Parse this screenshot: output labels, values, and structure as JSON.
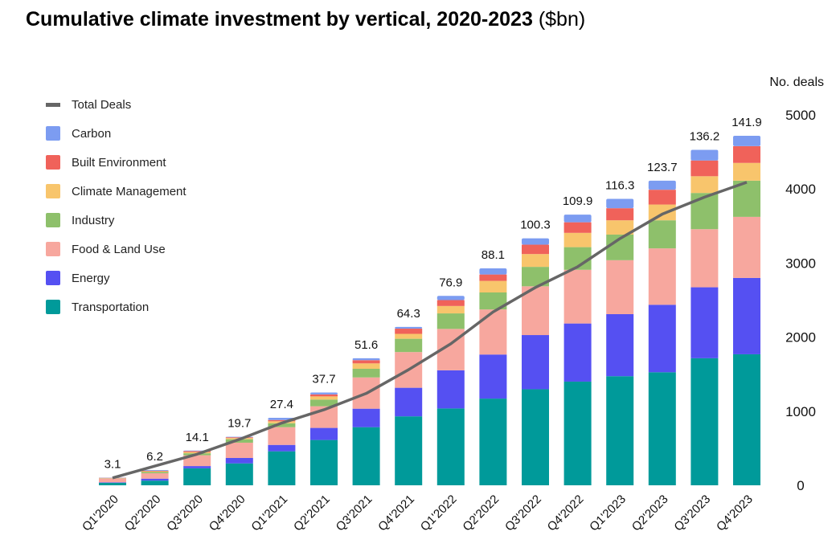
{
  "chart_data": {
    "type": "bar",
    "stacked": true,
    "title": "Cumulative climate investment by vertical, 2020-2023",
    "title_unit": "($bn)",
    "right_axis_label": "No. deals",
    "right_axis_ticks": [
      0,
      1000,
      2000,
      3000,
      4000,
      5000
    ],
    "right_axis_range": [
      0,
      5000
    ],
    "left_value_range_bn": [
      0,
      150.4
    ],
    "legend_position": "top-left",
    "categories": [
      "Q1'2020",
      "Q2'2020",
      "Q3'2020",
      "Q4'2020",
      "Q1'2021",
      "Q2'2021",
      "Q3'2021",
      "Q4'2021",
      "Q1'2022",
      "Q2'2022",
      "Q3'2022",
      "Q4'2022",
      "Q1'2023",
      "Q2'2023",
      "Q3'2023",
      "Q4'2023"
    ],
    "totals": [
      "3.1",
      "6.2",
      "14.1",
      "19.7",
      "27.4",
      "37.7",
      "51.6",
      "64.3",
      "76.9",
      "88.1",
      "100.3",
      "109.9",
      "116.3",
      "123.7",
      "136.2",
      "141.9"
    ],
    "series": [
      {
        "name": "Transportation",
        "color": "#009a9a",
        "values": [
          1.0,
          1.9,
          6.9,
          8.9,
          13.8,
          18.4,
          23.6,
          28.0,
          31.2,
          35.2,
          39.0,
          42.1,
          44.3,
          45.9,
          51.6,
          53.2
        ]
      },
      {
        "name": "Energy",
        "color": "#5550f2",
        "values": [
          0.2,
          0.8,
          0.9,
          2.2,
          2.6,
          4.9,
          7.5,
          11.6,
          15.5,
          17.9,
          22.0,
          23.6,
          25.2,
          27.4,
          28.8,
          31.0
        ]
      },
      {
        "name": "Food & Land Use",
        "color": "#f7a79e",
        "values": [
          1.6,
          2.2,
          4.4,
          6.2,
          7.2,
          8.8,
          12.7,
          14.5,
          16.8,
          18.3,
          19.8,
          21.8,
          21.9,
          22.9,
          23.6,
          24.8
        ]
      },
      {
        "name": "Industry",
        "color": "#8ec06b",
        "values": [
          0.1,
          0.5,
          0.8,
          1.4,
          1.6,
          2.7,
          3.5,
          5.4,
          6.3,
          6.9,
          7.9,
          9.2,
          10.4,
          11.4,
          14.7,
          14.7
        ]
      },
      {
        "name": "Climate Management",
        "color": "#f8c56c",
        "values": [
          0.1,
          0.3,
          0.5,
          0.5,
          0.8,
          1.3,
          2.2,
          2.0,
          3.0,
          4.7,
          5.2,
          5.8,
          5.8,
          6.4,
          6.8,
          7.2
        ]
      },
      {
        "name": "Built Environment",
        "color": "#f0625a",
        "values": [
          0.05,
          0.2,
          0.4,
          0.3,
          0.5,
          0.8,
          1.3,
          2.1,
          2.4,
          2.6,
          3.8,
          4.3,
          4.9,
          6.0,
          6.4,
          6.8
        ]
      },
      {
        "name": "Carbon",
        "color": "#7c9cf1",
        "values": [
          0.05,
          0.3,
          0.2,
          0.2,
          0.9,
          0.8,
          0.8,
          0.7,
          1.7,
          2.5,
          2.6,
          3.1,
          3.8,
          3.7,
          4.3,
          4.2
        ]
      }
    ],
    "line_series": {
      "name": "Total Deals",
      "color": "#666666",
      "axis": "right",
      "values": [
        100,
        260,
        420,
        620,
        840,
        1020,
        1240,
        1560,
        1910,
        2340,
        2670,
        2950,
        3330,
        3660,
        3890,
        4090
      ]
    },
    "legend": [
      "Total Deals",
      "Carbon",
      "Built Environment",
      "Climate Management",
      "Industry",
      "Food & Land Use",
      "Energy",
      "Transportation"
    ]
  }
}
